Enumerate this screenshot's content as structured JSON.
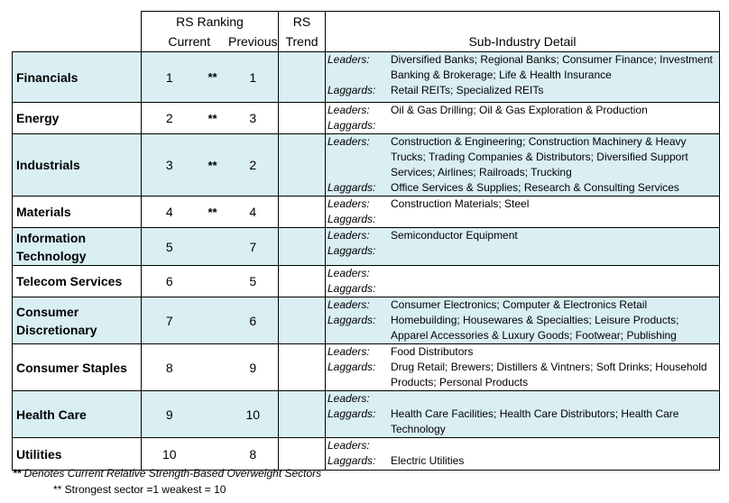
{
  "header": {
    "rs_ranking": "RS Ranking",
    "rs": "RS",
    "current": "Current",
    "previous": "Previous",
    "trend": "Trend",
    "sub_industry_detail": "Sub-Industry Detail"
  },
  "labels": {
    "leaders": "Leaders:",
    "laggards": "Laggards:"
  },
  "sectors": [
    {
      "name": "Financials",
      "current": "1",
      "flag": "**",
      "previous": "1",
      "trend": "",
      "leaders": "Diversified Banks; Regional Banks; Consumer Finance; Investment Banking & Brokerage; Life & Health Insurance",
      "laggards": "Retail REITs; Specialized REITs"
    },
    {
      "name": "Energy",
      "current": "2",
      "flag": "**",
      "previous": "3",
      "trend": "",
      "leaders": "Oil & Gas Drilling; Oil & Gas Exploration & Production",
      "laggards": ""
    },
    {
      "name": "Industrials",
      "current": "3",
      "flag": "**",
      "previous": "2",
      "trend": "",
      "leaders": "Construction & Engineering; Construction Machinery & Heavy Trucks; Trading Companies & Distributors; Diversified Support Services; Airlines; Railroads; Trucking",
      "laggards": "Office Services & Supplies; Research & Consulting Services"
    },
    {
      "name": "Materials",
      "current": "4",
      "flag": "**",
      "previous": "4",
      "trend": "",
      "leaders": "Construction Materials; Steel",
      "laggards": ""
    },
    {
      "name": "Information Technology",
      "current": "5",
      "flag": "",
      "previous": "7",
      "trend": "",
      "leaders": "Semiconductor Equipment",
      "laggards": ""
    },
    {
      "name": "Telecom Services",
      "current": "6",
      "flag": "",
      "previous": "5",
      "trend": "",
      "leaders": "",
      "laggards": ""
    },
    {
      "name": "Consumer Discretionary",
      "current": "7",
      "flag": "",
      "previous": "6",
      "trend": "",
      "leaders": "Consumer Electronics; Computer & Electronics Retail",
      "laggards": "Homebuilding; Housewares & Specialties; Leisure Products; Apparel Accessories & Luxury Goods; Footwear; Publishing"
    },
    {
      "name": "Consumer Staples",
      "current": "8",
      "flag": "",
      "previous": "9",
      "trend": "",
      "leaders": "Food Distributors",
      "laggards": "Drug Retail; Brewers; Distillers & Vintners; Soft Drinks; Household Products; Personal Products"
    },
    {
      "name": "Health Care",
      "current": "9",
      "flag": "",
      "previous": "10",
      "trend": "",
      "leaders": "",
      "laggards": "Health Care Facilities; Health Care Distributors; Health Care Technology"
    },
    {
      "name": "Utilities",
      "current": "10",
      "flag": "",
      "previous": "8",
      "trend": "",
      "leaders": "",
      "laggards": "Electric Utilities"
    }
  ],
  "footnotes": {
    "stars": "**",
    "note1_text": " Denotes Current Relative Strength-Based Overweight Sectors",
    "note2": "** Strongest sector =1 weakest = 10"
  },
  "colors": {
    "shade": "#d9eff3",
    "border": "#000000"
  }
}
